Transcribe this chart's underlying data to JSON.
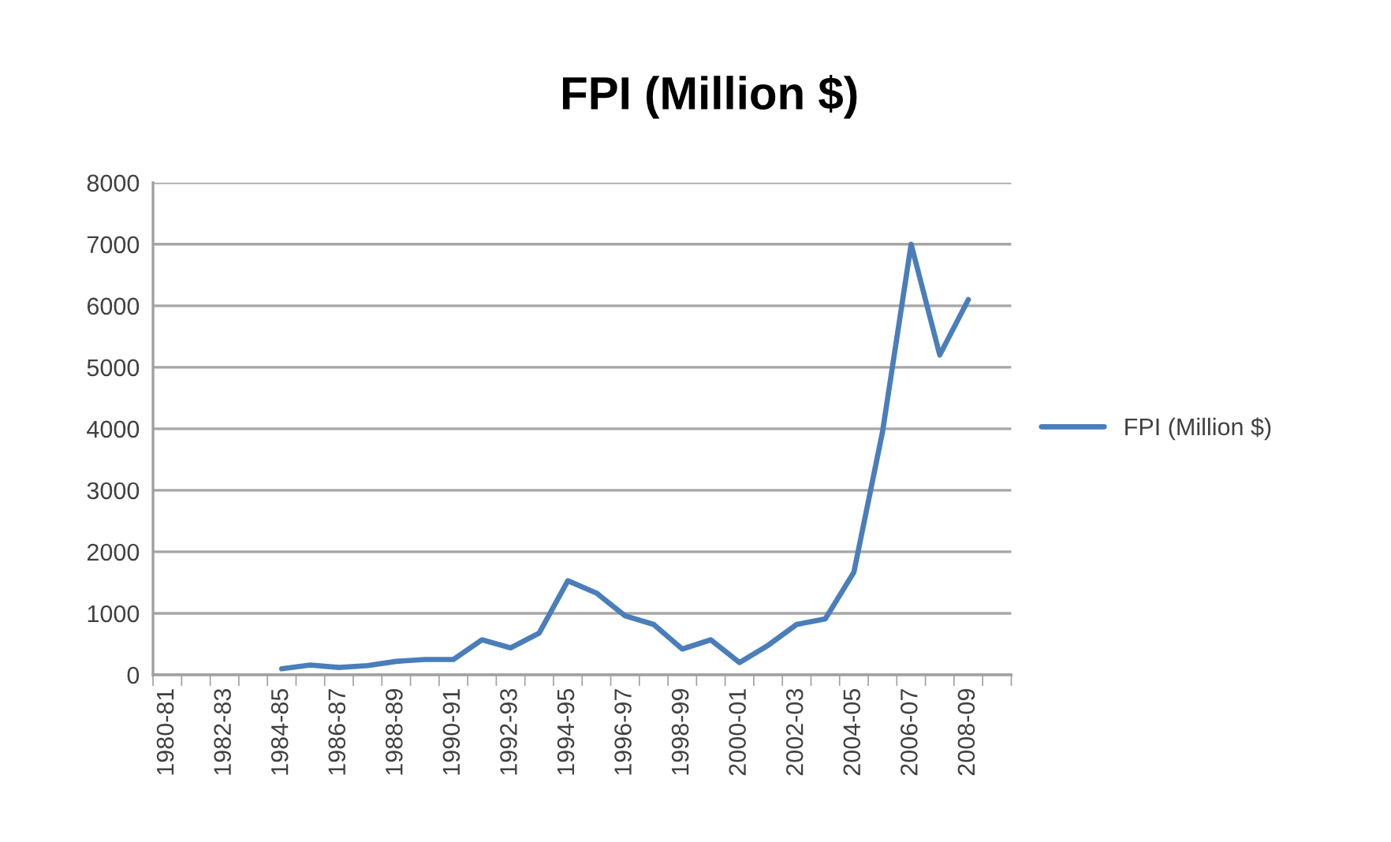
{
  "chart_data": {
    "type": "line",
    "title": "FPI (Million $)",
    "categories": [
      "1980-81",
      null,
      "1982-83",
      null,
      "1984-85",
      null,
      "1986-87",
      null,
      "1988-89",
      null,
      "1990-91",
      null,
      "1992-93",
      null,
      "1994-95",
      null,
      "1996-97",
      null,
      "1998-99",
      null,
      "2000-01",
      null,
      "2002-03",
      null,
      "2004-05",
      null,
      "2006-07",
      null,
      "2008-09",
      null
    ],
    "series": [
      {
        "name": "FPI (Million $)",
        "color": "#4a7ebb",
        "values": [
          null,
          null,
          null,
          null,
          100,
          160,
          120,
          150,
          220,
          250,
          250,
          570,
          440,
          680,
          1530,
          1330,
          960,
          820,
          420,
          570,
          200,
          480,
          820,
          910,
          1670,
          3950,
          7000,
          5200,
          6100,
          null
        ]
      }
    ],
    "ylim": [
      0,
      8000
    ],
    "yticks": [
      0,
      1000,
      2000,
      3000,
      4000,
      5000,
      6000,
      7000,
      8000
    ],
    "grid": "y",
    "legend": "right",
    "marker": "none",
    "line_style": "solid"
  }
}
